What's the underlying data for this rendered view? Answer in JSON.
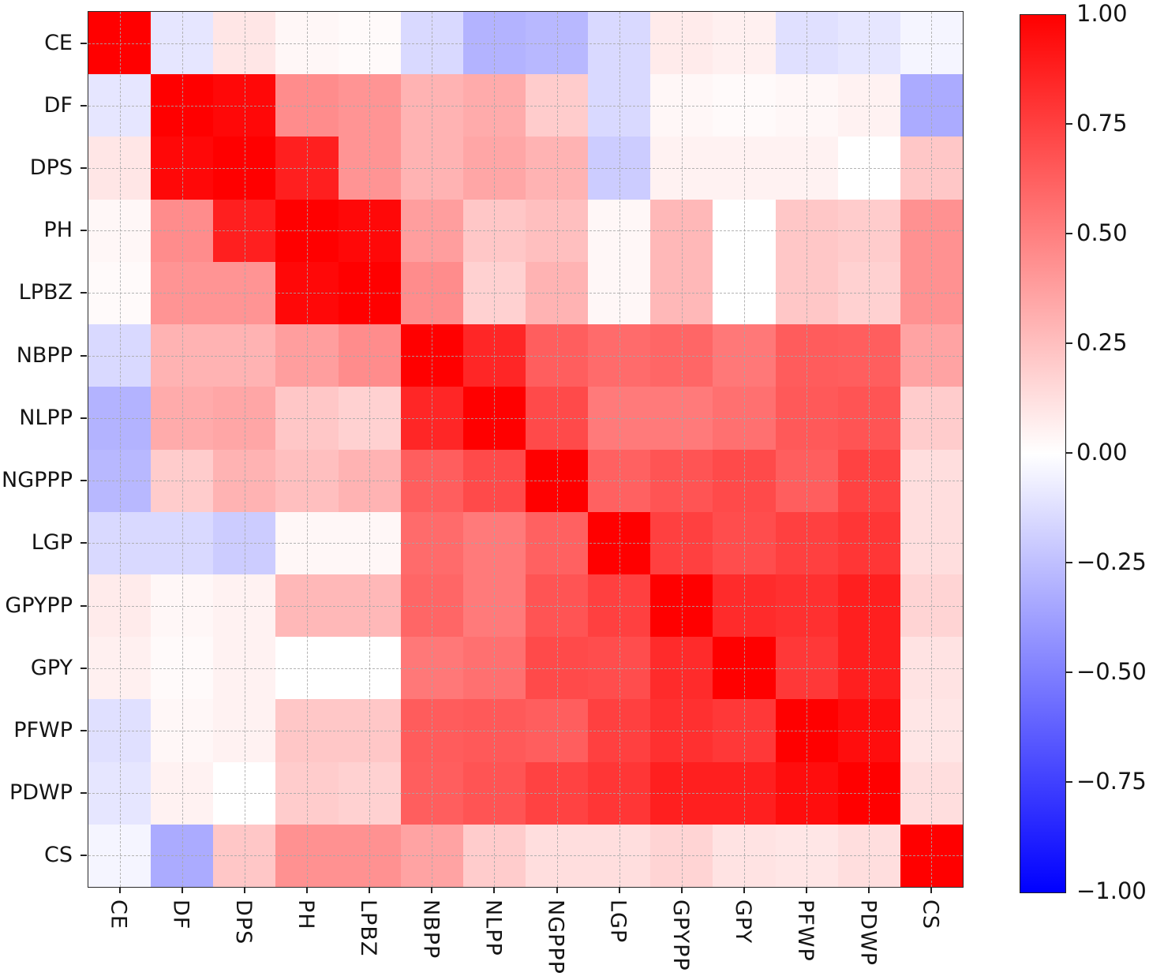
{
  "figure": {
    "kind": "correlation-matrix-heatmap",
    "background": "#ffffff",
    "text_color": "#151515"
  },
  "chart_data": {
    "type": "heatmap",
    "variables": [
      "CE",
      "DF",
      "DPS",
      "PH",
      "LPBZ",
      "NBPP",
      "NLPP",
      "NGPPP",
      "LGP",
      "GPYPP",
      "GPY",
      "PFWP",
      "PDWP",
      "CS"
    ],
    "x_tick_labels": [
      "CE",
      "DF",
      "DPS",
      "PH",
      "LPBZ",
      "NBPP",
      "NLPP",
      "NGPPP",
      "LGP",
      "GPYPP",
      "GPY",
      "PFWP",
      "PDWP",
      "CS"
    ],
    "y_tick_labels": [
      "CE",
      "DF",
      "DPS",
      "PH",
      "LPBZ",
      "NBPP",
      "NLPP",
      "NGPPP",
      "LGP",
      "GPYPP",
      "GPY",
      "PFWP",
      "PDWP",
      "CS"
    ],
    "matrix": [
      [
        1.0,
        -0.1,
        0.1,
        0.03,
        0.02,
        -0.15,
        -0.3,
        -0.28,
        -0.15,
        0.08,
        0.06,
        -0.12,
        -0.1,
        -0.04
      ],
      [
        -0.1,
        1.0,
        0.97,
        0.45,
        0.42,
        0.3,
        0.33,
        0.2,
        -0.15,
        0.03,
        0.02,
        0.03,
        0.05,
        -0.33
      ],
      [
        0.1,
        0.97,
        1.0,
        0.88,
        0.42,
        0.3,
        0.35,
        0.3,
        -0.2,
        0.05,
        0.05,
        0.05,
        0.0,
        0.22
      ],
      [
        0.03,
        0.45,
        0.88,
        1.0,
        0.97,
        0.38,
        0.22,
        0.25,
        0.03,
        0.28,
        0.0,
        0.22,
        0.2,
        0.43
      ],
      [
        0.02,
        0.42,
        0.42,
        0.97,
        1.0,
        0.45,
        0.18,
        0.3,
        0.03,
        0.28,
        0.0,
        0.22,
        0.18,
        0.43
      ],
      [
        -0.15,
        0.3,
        0.3,
        0.38,
        0.45,
        1.0,
        0.85,
        0.63,
        0.58,
        0.6,
        0.53,
        0.64,
        0.63,
        0.36
      ],
      [
        -0.3,
        0.33,
        0.35,
        0.22,
        0.18,
        0.85,
        1.0,
        0.71,
        0.52,
        0.52,
        0.56,
        0.65,
        0.67,
        0.2
      ],
      [
        -0.28,
        0.2,
        0.3,
        0.25,
        0.3,
        0.63,
        0.71,
        1.0,
        0.62,
        0.67,
        0.71,
        0.63,
        0.74,
        0.13
      ],
      [
        -0.15,
        -0.15,
        -0.2,
        0.03,
        0.03,
        0.58,
        0.52,
        0.62,
        1.0,
        0.75,
        0.7,
        0.75,
        0.79,
        0.13
      ],
      [
        0.08,
        0.03,
        0.05,
        0.28,
        0.28,
        0.6,
        0.52,
        0.67,
        0.75,
        1.0,
        0.83,
        0.81,
        0.88,
        0.17
      ],
      [
        0.06,
        0.02,
        0.05,
        0.0,
        0.0,
        0.53,
        0.56,
        0.71,
        0.7,
        0.83,
        1.0,
        0.78,
        0.88,
        0.11
      ],
      [
        -0.12,
        0.03,
        0.05,
        0.22,
        0.22,
        0.64,
        0.65,
        0.63,
        0.75,
        0.81,
        0.78,
        1.0,
        0.95,
        0.1
      ],
      [
        -0.1,
        0.05,
        0.0,
        0.2,
        0.18,
        0.63,
        0.67,
        0.74,
        0.79,
        0.88,
        0.88,
        0.95,
        1.0,
        0.13
      ],
      [
        -0.04,
        -0.33,
        0.22,
        0.43,
        0.43,
        0.36,
        0.2,
        0.13,
        0.13,
        0.17,
        0.11,
        0.1,
        0.13,
        1.0
      ]
    ],
    "value_range": [
      -1,
      1
    ],
    "colormap": {
      "name": "blue-white-red",
      "negative_end": "#0000ff",
      "midpoint": "#ffffff",
      "positive_end": "#ff0000"
    },
    "grid": {
      "visible": true,
      "style": "dashed",
      "color": "#a8a8a8",
      "position": "cell-centers"
    },
    "colorbar": {
      "location": "right",
      "tick_values": [
        1.0,
        0.75,
        0.5,
        0.25,
        0.0,
        -0.25,
        -0.5,
        -0.75,
        -1.0
      ],
      "tick_labels": [
        "1.00",
        "0.75",
        "0.50",
        "0.25",
        "0.00",
        "−0.25",
        "−0.50",
        "−0.75",
        "−1.00"
      ]
    }
  }
}
